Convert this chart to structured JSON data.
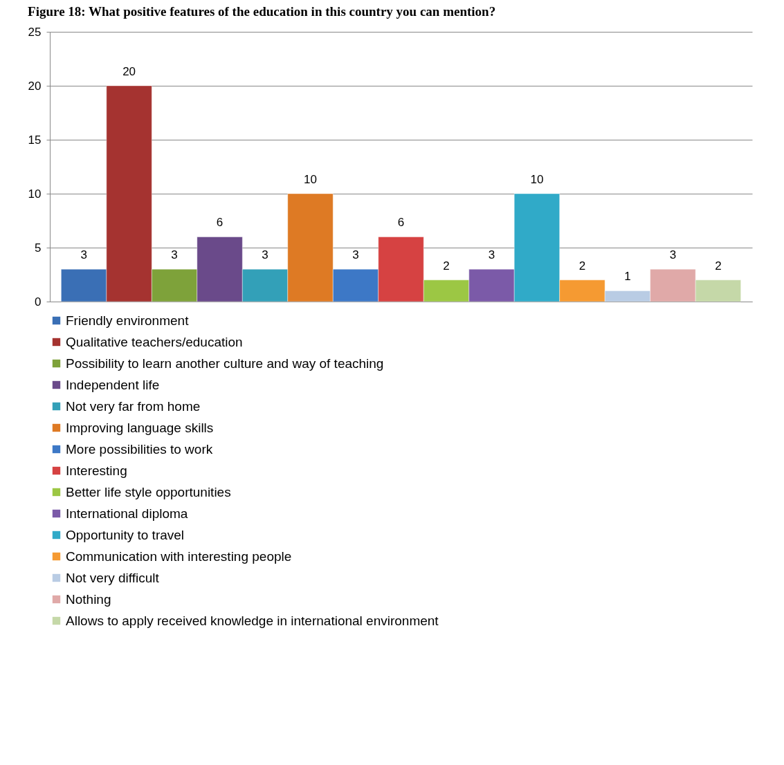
{
  "chart_data": {
    "type": "bar",
    "title": "Figure 18: What positive features of the education in this country you can mention?",
    "categories": [
      null
    ],
    "series": [
      {
        "name": "Friendly environment",
        "color": "#3a6fb5",
        "values": [
          3
        ]
      },
      {
        "name": "Qualitative teachers/education",
        "color": "#a53330",
        "values": [
          20
        ]
      },
      {
        "name": "Possibility to learn another culture and way of teaching",
        "color": "#7ea23a",
        "values": [
          3
        ]
      },
      {
        "name": "Independent life",
        "color": "#6a4a8a",
        "values": [
          6
        ]
      },
      {
        "name": "Not very far from home",
        "color": "#33a0b8",
        "values": [
          3
        ]
      },
      {
        "name": "Improving language skills",
        "color": "#de7a24",
        "values": [
          10
        ]
      },
      {
        "name": "More possibilities to work",
        "color": "#3d78c6",
        "values": [
          3
        ]
      },
      {
        "name": "Interesting",
        "color": "#d64242",
        "values": [
          6
        ]
      },
      {
        "name": "Better life style opportunities",
        "color": "#9cc744",
        "values": [
          2
        ]
      },
      {
        "name": "International diploma",
        "color": "#7b5aa8",
        "values": [
          3
        ]
      },
      {
        "name": "Opportunity to travel",
        "color": "#30aac8",
        "values": [
          10
        ]
      },
      {
        "name": "Communication with interesting people",
        "color": "#f59a32",
        "values": [
          2
        ]
      },
      {
        "name": "Not very difficult",
        "color": "#b9cce4",
        "values": [
          1
        ]
      },
      {
        "name": "Nothing",
        "color": "#e0a9a8",
        "values": [
          3
        ]
      },
      {
        "name": "Allows to apply received knowledge in international environment",
        "color": "#c5d8a8",
        "values": [
          2
        ]
      }
    ],
    "ylim": [
      0,
      25
    ],
    "yticks": [
      0,
      5,
      10,
      15,
      20,
      25
    ],
    "grid": "y",
    "legend": "bottom",
    "data_labels": true
  }
}
